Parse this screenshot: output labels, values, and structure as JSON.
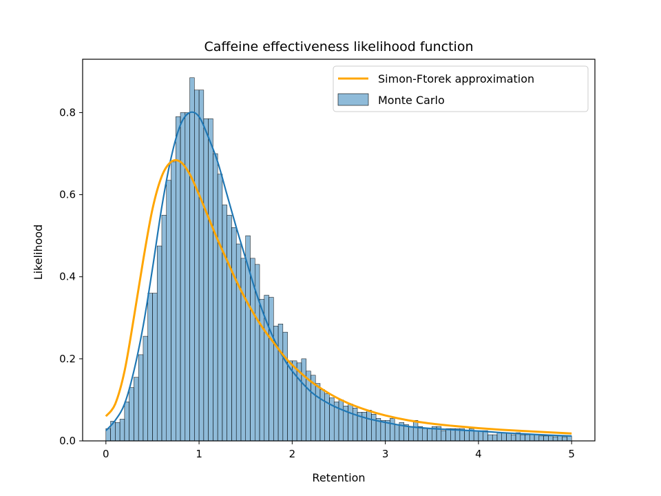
{
  "chart_data": {
    "type": "bar",
    "title": "Caffeine effectiveness likelihood function",
    "xlabel": "Retention",
    "ylabel": "Likelihood",
    "xlim": [
      -0.25,
      5.25
    ],
    "ylim": [
      0,
      0.93
    ],
    "x_ticks": [
      0,
      1,
      2,
      3,
      4,
      5
    ],
    "y_ticks": [
      0.0,
      0.2,
      0.4,
      0.6,
      0.8
    ],
    "x_tick_labels": [
      "0",
      "1",
      "2",
      "3",
      "4",
      "5"
    ],
    "y_tick_labels": [
      "0.0",
      "0.2",
      "0.4",
      "0.6",
      "0.8"
    ],
    "grid": false,
    "legend_position": "top-right",
    "legend": [
      {
        "label": "Simon-Ftorek approximation",
        "kind": "line",
        "color": "#ffa500"
      },
      {
        "label": "Monte Carlo",
        "kind": "patch",
        "color": "#1f77b4"
      }
    ],
    "histogram": {
      "name": "Monte Carlo",
      "bin_width": 0.05,
      "bin_start": 0.0,
      "color": "#1f77b4",
      "values": [
        0.03,
        0.048,
        0.045,
        0.053,
        0.095,
        0.13,
        0.155,
        0.21,
        0.255,
        0.36,
        0.36,
        0.475,
        0.55,
        0.635,
        0.68,
        0.79,
        0.8,
        0.8,
        0.885,
        0.855,
        0.855,
        0.785,
        0.785,
        0.7,
        0.65,
        0.575,
        0.55,
        0.52,
        0.48,
        0.445,
        0.5,
        0.445,
        0.43,
        0.345,
        0.355,
        0.35,
        0.28,
        0.285,
        0.265,
        0.195,
        0.195,
        0.19,
        0.2,
        0.17,
        0.16,
        0.14,
        0.125,
        0.115,
        0.105,
        0.095,
        0.1,
        0.085,
        0.09,
        0.08,
        0.07,
        0.07,
        0.075,
        0.065,
        0.055,
        0.05,
        0.05,
        0.055,
        0.04,
        0.045,
        0.04,
        0.035,
        0.05,
        0.035,
        0.03,
        0.03,
        0.035,
        0.035,
        0.025,
        0.03,
        0.03,
        0.03,
        0.03,
        0.025,
        0.03,
        0.025,
        0.025,
        0.025,
        0.015,
        0.015,
        0.02,
        0.02,
        0.018,
        0.015,
        0.02,
        0.015,
        0.015,
        0.015,
        0.015,
        0.012,
        0.012,
        0.012,
        0.01,
        0.012,
        0.01,
        0.012
      ]
    },
    "series": [
      {
        "name": "Monte Carlo",
        "kind": "kde",
        "color": "#1f77b4",
        "x": [
          0,
          0.1,
          0.2,
          0.3,
          0.4,
          0.5,
          0.6,
          0.7,
          0.8,
          0.9,
          1.0,
          1.1,
          1.2,
          1.3,
          1.4,
          1.5,
          1.6,
          1.7,
          1.8,
          1.9,
          2.0,
          2.2,
          2.4,
          2.6,
          2.8,
          3.0,
          3.25,
          3.5,
          3.75,
          4.0,
          4.25,
          4.5,
          4.75,
          5.0
        ],
        "y": [
          0.025,
          0.05,
          0.09,
          0.17,
          0.28,
          0.42,
          0.57,
          0.69,
          0.77,
          0.8,
          0.79,
          0.74,
          0.68,
          0.6,
          0.52,
          0.445,
          0.37,
          0.305,
          0.25,
          0.205,
          0.17,
          0.12,
          0.09,
          0.07,
          0.055,
          0.045,
          0.035,
          0.03,
          0.027,
          0.024,
          0.02,
          0.017,
          0.014,
          0.012
        ]
      },
      {
        "name": "Simon-Ftorek approximation",
        "kind": "line",
        "color": "#ffa500",
        "x": [
          0,
          0.1,
          0.2,
          0.3,
          0.4,
          0.5,
          0.6,
          0.7,
          0.8,
          0.9,
          1.0,
          1.1,
          1.2,
          1.3,
          1.4,
          1.5,
          1.6,
          1.7,
          1.8,
          1.9,
          2.0,
          2.2,
          2.4,
          2.6,
          2.8,
          3.0,
          3.25,
          3.5,
          3.75,
          4.0,
          4.25,
          4.5,
          4.75,
          5.0
        ],
        "y": [
          0.06,
          0.09,
          0.17,
          0.3,
          0.44,
          0.565,
          0.645,
          0.68,
          0.68,
          0.65,
          0.6,
          0.545,
          0.49,
          0.44,
          0.39,
          0.345,
          0.305,
          0.27,
          0.24,
          0.21,
          0.185,
          0.145,
          0.115,
          0.092,
          0.075,
          0.062,
          0.05,
          0.042,
          0.036,
          0.031,
          0.027,
          0.024,
          0.021,
          0.018
        ]
      }
    ]
  }
}
